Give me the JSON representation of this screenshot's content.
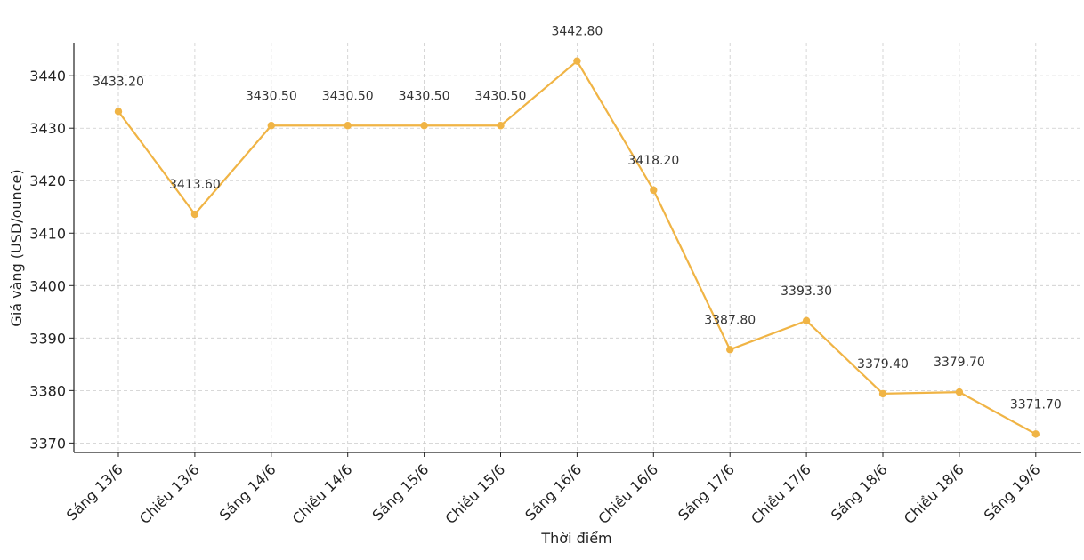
{
  "chart_data": {
    "type": "line",
    "title": "",
    "xlabel": "Thời điểm",
    "ylabel": "Giá vàng (USD/ounce)",
    "categories": [
      "Sáng 13/6",
      "Chiều 13/6",
      "Sáng 14/6",
      "Chiều 14/6",
      "Sáng 15/6",
      "Chiều 15/6",
      "Sáng 16/6",
      "Chiều 16/6",
      "Sáng 17/6",
      "Chiều 17/6",
      "Sáng 18/6",
      "Chiều 18/6",
      "Sáng 19/6"
    ],
    "values": [
      3433.2,
      3413.6,
      3430.5,
      3430.5,
      3430.5,
      3430.5,
      3442.8,
      3418.2,
      3387.8,
      3393.3,
      3379.4,
      3379.7,
      3371.7
    ],
    "data_labels": [
      "3433.20",
      "3413.60",
      "3430.50",
      "3430.50",
      "3430.50",
      "3430.50",
      "3442.80",
      "3418.20",
      "3387.80",
      "3393.30",
      "3379.40",
      "3379.70",
      "3371.70"
    ],
    "yticks": [
      3370,
      3380,
      3390,
      3400,
      3410,
      3420,
      3430,
      3440
    ],
    "ylim": [
      3368.2,
      3446.3
    ],
    "grid": true,
    "line_color": "#F0B445",
    "legend": "none"
  }
}
